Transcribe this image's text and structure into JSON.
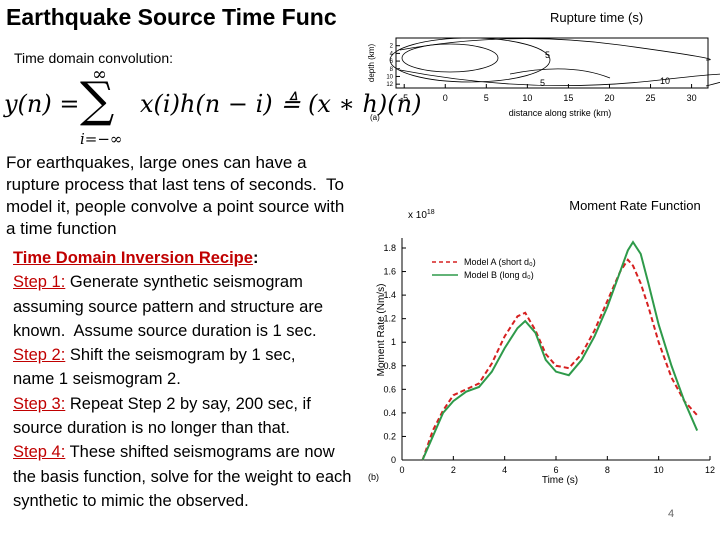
{
  "title": "Earthquake Source Time Func",
  "subtitle": "Time domain convolution:",
  "formula": {
    "lhs": "y(n) =",
    "sum_top": "∞",
    "sum_sign": "∑",
    "sum_bottom": "i=−∞",
    "rhs": "x(i)h(n − i) ≜ (x ∗ h)(n)"
  },
  "paragraph": [
    "For earthquakes, large ones can have a",
    "rupture process that last tens of seconds.  To",
    "model it, people convolve a point source with",
    "a time function"
  ],
  "recipe": {
    "heading": "Time Domain Inversion Recipe",
    "heading_colon": ":",
    "lines": [
      {
        "step": "Step 1:",
        "text": " Generate synthetic seismogram"
      },
      {
        "text": "assuming source pattern and structure are"
      },
      {
        "text": "known.  Assume source duration is 1 sec."
      },
      {
        "step": "Step 2:",
        "text": " Shift the seismogram by 1 sec,"
      },
      {
        "text": "name 1 seismogram 2."
      },
      {
        "step": "Step 3:",
        "text": " Repeat Step 2 by say, 200 sec, if"
      },
      {
        "text": "source duration is no longer than that."
      },
      {
        "step": "Step 4:",
        "text": " These shifted seismograms are now"
      },
      {
        "text": "the basis function, solve for the weight to each"
      },
      {
        "text": "synthetic to mimic the observed."
      }
    ]
  },
  "rupture_figure": {
    "title": "Rupture time (s)",
    "ylabel": "depth (km)",
    "xlabel": "distance along strike (km)",
    "panel": "(a)",
    "xticks": [
      -5,
      0,
      5,
      10,
      15,
      20,
      25,
      30
    ],
    "xlim": [
      -6,
      32
    ],
    "yticks": [
      2,
      4,
      6,
      8,
      10,
      12
    ],
    "ylim": [
      0,
      13
    ],
    "contour_labels": [
      "5",
      "5",
      "10"
    ]
  },
  "chart_data": {
    "type": "line",
    "title": "Moment Rate Function",
    "ylabel": "Moment Rate (Nm/s)",
    "xlabel": "Time (s)",
    "multiplier": "x 10",
    "multiplier_exp": "18",
    "panel": "(b)",
    "x": [
      0.8,
      1.2,
      1.6,
      2,
      2.5,
      3,
      3.5,
      4,
      4.5,
      4.8,
      5.2,
      5.6,
      6,
      6.5,
      7,
      7.5,
      8,
      8.5,
      8.8,
      9,
      9.3,
      9.6,
      10,
      10.5,
      11,
      11.5
    ],
    "series": [
      {
        "name": "Model A (short d₀)",
        "color": "#d62020",
        "dash": true,
        "values": [
          0,
          0.25,
          0.42,
          0.55,
          0.6,
          0.65,
          0.82,
          1.05,
          1.22,
          1.25,
          1.1,
          0.9,
          0.8,
          0.78,
          0.9,
          1.1,
          1.35,
          1.6,
          1.7,
          1.65,
          1.5,
          1.3,
          1.0,
          0.7,
          0.5,
          0.38
        ]
      },
      {
        "name": "Model B (long d₀)",
        "color": "#2e9a4a",
        "dash": false,
        "values": [
          0,
          0.2,
          0.4,
          0.5,
          0.58,
          0.62,
          0.75,
          0.95,
          1.12,
          1.18,
          1.08,
          0.85,
          0.75,
          0.72,
          0.85,
          1.05,
          1.3,
          1.6,
          1.78,
          1.85,
          1.75,
          1.5,
          1.15,
          0.8,
          0.5,
          0.25
        ]
      }
    ],
    "xlim": [
      0,
      12
    ],
    "xticks": [
      0,
      2,
      4,
      6,
      8,
      10,
      12
    ],
    "ylim": [
      0,
      1.8
    ],
    "yticks": [
      0,
      0.2,
      0.4,
      0.6,
      0.8,
      1,
      1.2,
      1.4,
      1.6,
      1.8
    ]
  },
  "page_number": "4"
}
